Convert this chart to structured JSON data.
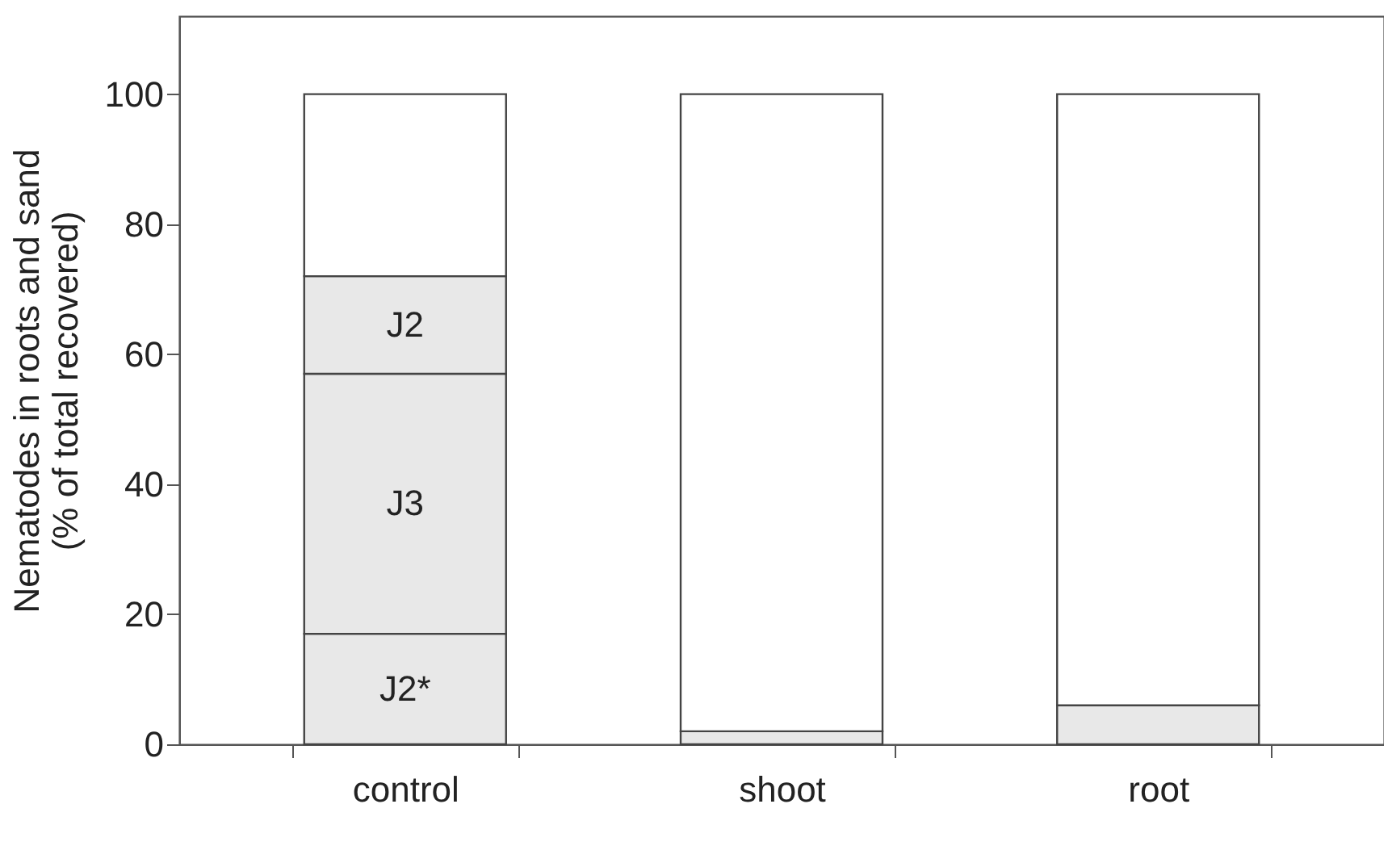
{
  "chart_data": {
    "type": "bar",
    "stacked": true,
    "ylabel": "Nematodes in roots and sand\n(% of total recovered)",
    "categories": [
      "control",
      "shoot",
      "root"
    ],
    "series": [
      {
        "name": "J2*",
        "color": "#e8e8e8",
        "values": [
          17,
          2,
          6
        ]
      },
      {
        "name": "J3",
        "color": "#e8e8e8",
        "values": [
          40,
          0,
          0
        ]
      },
      {
        "name": "J2",
        "color": "#e8e8e8",
        "values": [
          15,
          0,
          0
        ]
      },
      {
        "color": "#ffffff",
        "values": [
          28,
          98,
          94
        ]
      }
    ],
    "ylim": [
      0,
      112
    ],
    "yticks": [
      0,
      20,
      40,
      60,
      80,
      100
    ],
    "grid": false
  }
}
